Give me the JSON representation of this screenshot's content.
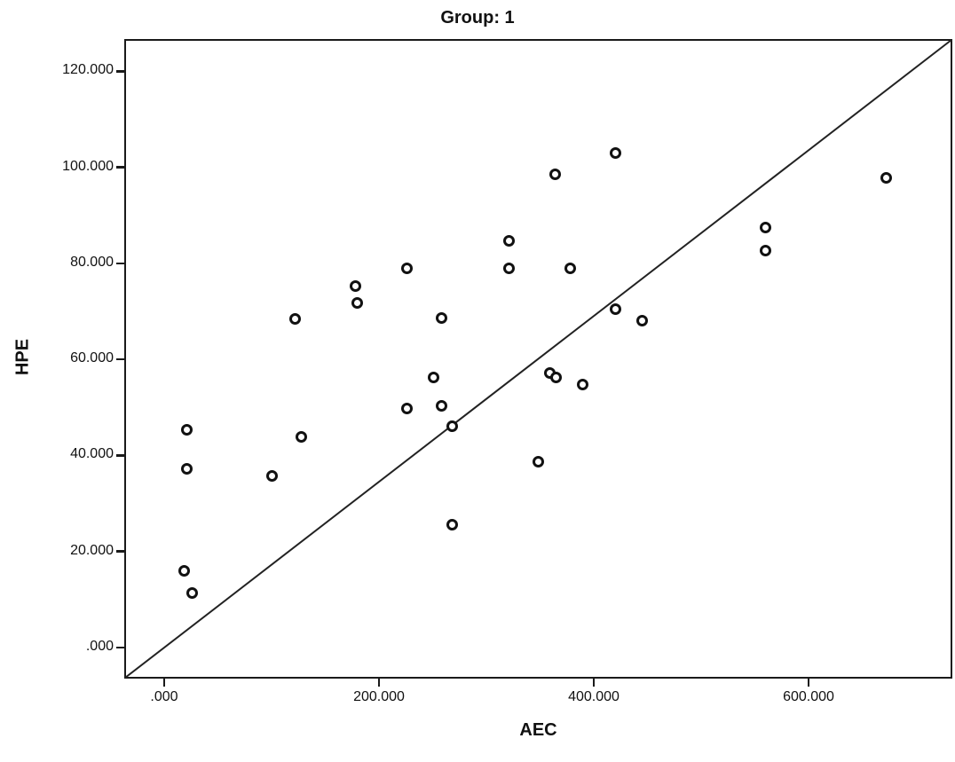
{
  "colors": {
    "foreground": "#1a1a1a",
    "background": "#ffffff",
    "marker_ring": "#111111",
    "reference_line": "#222222"
  },
  "chart_data": {
    "type": "scatter",
    "title": "Group: 1",
    "xlabel": "AEC",
    "ylabel": "HPE",
    "xlim": [
      -37.2,
      733.9
    ],
    "ylim": [
      -6.5,
      126.7
    ],
    "grid": false,
    "legend": "none",
    "marker_style": "open-circle",
    "x_ticks": [
      {
        "value": 0,
        "label": ".000"
      },
      {
        "value": 200,
        "label": "200.000"
      },
      {
        "value": 400,
        "label": "400.000"
      },
      {
        "value": 600,
        "label": "600.000"
      }
    ],
    "y_ticks": [
      {
        "value": 120,
        "label": "120.000"
      },
      {
        "value": 100,
        "label": "100.000"
      },
      {
        "value": 80,
        "label": "80.000"
      },
      {
        "value": 60,
        "label": "60.000"
      },
      {
        "value": 40,
        "label": "40.000"
      },
      {
        "value": 20,
        "label": "20.000"
      },
      {
        "value": 0,
        "label": ".000"
      }
    ],
    "point_format": "[AEC, HPE]",
    "points": [
      [
        19,
        15.9
      ],
      [
        21,
        45.4
      ],
      [
        21,
        37.1
      ],
      [
        26,
        11.4
      ],
      [
        100,
        35.8
      ],
      [
        122,
        68.5
      ],
      [
        128,
        43.8
      ],
      [
        178,
        75.3
      ],
      [
        180,
        71.8
      ],
      [
        226,
        79.0
      ],
      [
        226,
        49.7
      ],
      [
        251,
        56.3
      ],
      [
        258,
        68.6
      ],
      [
        258,
        50.4
      ],
      [
        268,
        46.0
      ],
      [
        268,
        25.5
      ],
      [
        321,
        84.6
      ],
      [
        321,
        79.0
      ],
      [
        348,
        38.6
      ],
      [
        359,
        57.2
      ],
      [
        364,
        98.6
      ],
      [
        365,
        56.3
      ],
      [
        378,
        78.9
      ],
      [
        390,
        54.8
      ],
      [
        420,
        102.9
      ],
      [
        420,
        70.5
      ],
      [
        445,
        68.0
      ],
      [
        560,
        87.5
      ],
      [
        560,
        82.7
      ],
      [
        672,
        97.7
      ]
    ],
    "reference_line": {
      "description": "straight diagonal from bottom-left plot corner to top-right plot corner",
      "x1": -37.2,
      "y1": -6.5,
      "x2": 733.9,
      "y2": 126.7
    }
  }
}
